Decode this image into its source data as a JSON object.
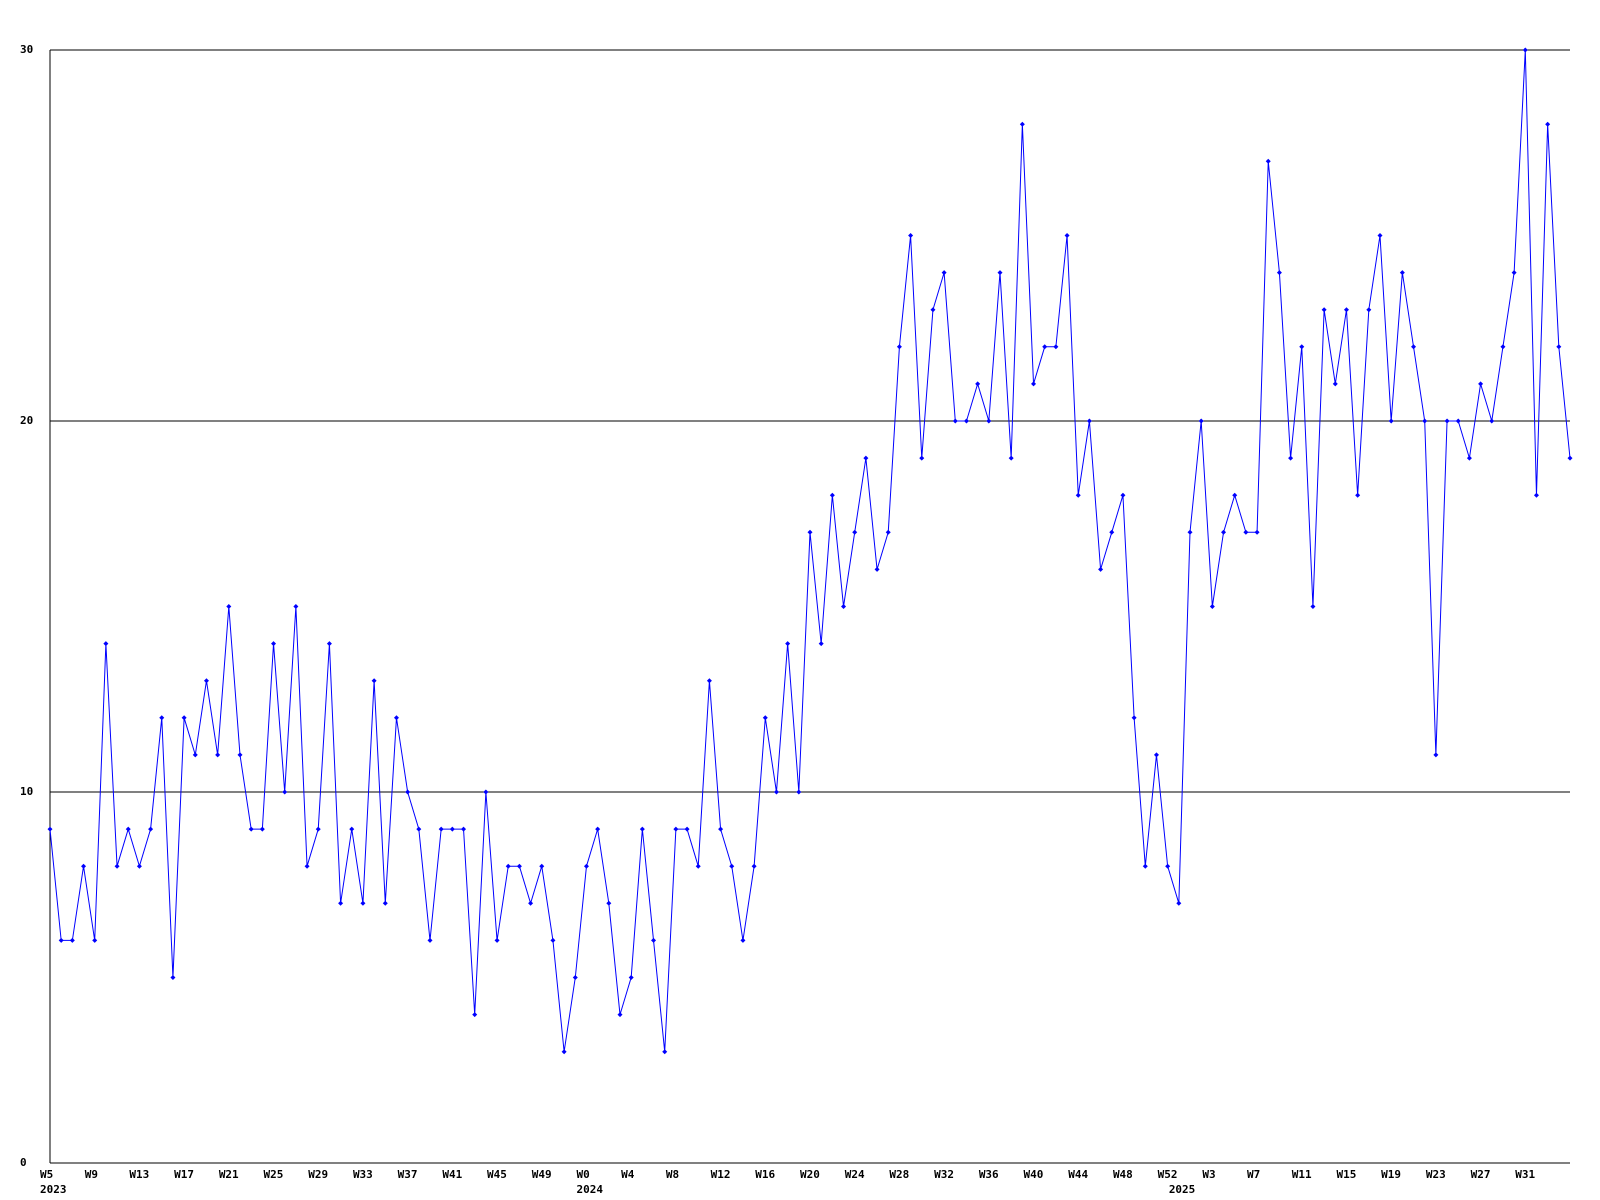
{
  "chart_data": {
    "type": "line",
    "categories": [
      "W5",
      null,
      null,
      null,
      "W9",
      null,
      null,
      null,
      "W13",
      null,
      null,
      null,
      "W17",
      null,
      null,
      null,
      "W21",
      null,
      null,
      null,
      "W25",
      null,
      null,
      null,
      "W29",
      null,
      null,
      null,
      "W33",
      null,
      null,
      null,
      "W37",
      null,
      null,
      null,
      "W41",
      null,
      null,
      null,
      "W45",
      null,
      null,
      null,
      "W49",
      null,
      null,
      null,
      "W0",
      null,
      null,
      null,
      "W4",
      null,
      null,
      null,
      "W8",
      null,
      null,
      null,
      "W12",
      null,
      null,
      null,
      "W16",
      null,
      null,
      null,
      "W20",
      null,
      null,
      null,
      "W24",
      null,
      null,
      null,
      "W28",
      null,
      null,
      null,
      "W32",
      null,
      null,
      null,
      "W36",
      null,
      null,
      null,
      "W40",
      null,
      null,
      null,
      "W44",
      null,
      null,
      null,
      "W48",
      null,
      null,
      null,
      "W52",
      null,
      null,
      null,
      "W3",
      null,
      null,
      null,
      "W7",
      null,
      null,
      null,
      "W11",
      null,
      null,
      null,
      "W15",
      null,
      null,
      null,
      "W19",
      null,
      null,
      null,
      "W23",
      null,
      null,
      null,
      "W27",
      null,
      null,
      null,
      "W31",
      null,
      null,
      null,
      null
    ],
    "year_labels": [
      "2023",
      null,
      null,
      null,
      null,
      null,
      null,
      null,
      null,
      null,
      null,
      null,
      null,
      null,
      null,
      null,
      null,
      null,
      null,
      null,
      null,
      null,
      null,
      null,
      null,
      null,
      null,
      null,
      null,
      null,
      null,
      null,
      null,
      null,
      null,
      null,
      null,
      null,
      null,
      null,
      null,
      null,
      null,
      null,
      null,
      null,
      null,
      null,
      "2024",
      null,
      null,
      null,
      null,
      null,
      null,
      null,
      null,
      null,
      null,
      null,
      null,
      null,
      null,
      null,
      null,
      null,
      null,
      null,
      null,
      null,
      null,
      null,
      null,
      null,
      null,
      null,
      null,
      null,
      null,
      null,
      null,
      null,
      null,
      null,
      null,
      null,
      null,
      null,
      null,
      null,
      null,
      null,
      null,
      null,
      null,
      null,
      null,
      null,
      null,
      null,
      null,
      "2025",
      null,
      null,
      null,
      null,
      null,
      null,
      null,
      null,
      null,
      null,
      null,
      null,
      null,
      null,
      null,
      null,
      null,
      null,
      null,
      null,
      null,
      null,
      null,
      null,
      null,
      null,
      null,
      null,
      null,
      null,
      null,
      null,
      null,
      null
    ],
    "series": [
      {
        "color": "#0000ff",
        "values": [
          9,
          6,
          6,
          8,
          6,
          14,
          8,
          9,
          8,
          9,
          12,
          5,
          12,
          11,
          13,
          11,
          15,
          11,
          9,
          9,
          14,
          10,
          15,
          8,
          9,
          14,
          7,
          9,
          7,
          13,
          7,
          12,
          10,
          9,
          6,
          9,
          9,
          9,
          4,
          10,
          6,
          8,
          8,
          7,
          8,
          6,
          3,
          5,
          8,
          9,
          7,
          4,
          5,
          9,
          6,
          3,
          9,
          9,
          8,
          13,
          9,
          8,
          6,
          8,
          12,
          10,
          14,
          10,
          17,
          14,
          18,
          15,
          17,
          19,
          16,
          17,
          22,
          25,
          19,
          23,
          24,
          20,
          20,
          21,
          20,
          24,
          19,
          28,
          21,
          22,
          22,
          25,
          18,
          20,
          16,
          17,
          18,
          12,
          8,
          11,
          8,
          7,
          17,
          20,
          15,
          17,
          18,
          17,
          17,
          27,
          24,
          19,
          22,
          15,
          23,
          21,
          23,
          18,
          23,
          25,
          20,
          24,
          22,
          20,
          11,
          20,
          20,
          19,
          21,
          20,
          22,
          24,
          30,
          18,
          28,
          22,
          19
        ]
      }
    ],
    "ylim": [
      0,
      30
    ],
    "yticks": [
      0,
      10,
      20,
      30
    ],
    "grid": true
  }
}
